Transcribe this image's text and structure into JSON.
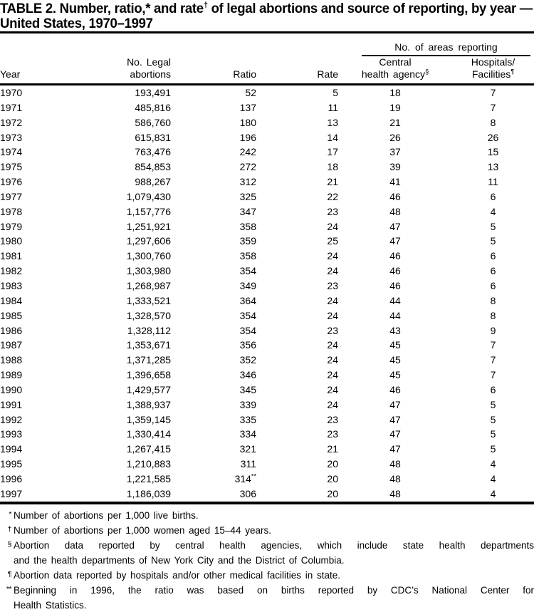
{
  "title": {
    "line1_pre": "TABLE 2. Number, ratio,* and rate",
    "line1_sup": "†",
    "line1_post": " of legal abortions and source of reporting, by year —",
    "line2": "United States, 1970–1997"
  },
  "columns": {
    "year": "Year",
    "abortions_line1": "No. Legal",
    "abortions_line2": "abortions",
    "ratio": "Ratio",
    "rate": "Rate",
    "spanner": "No. of areas reporting",
    "central_line1": "Central",
    "central_line2": "health agency",
    "central_sup": "§",
    "hospitals_line1": "Hospitals/",
    "hospitals_line2": "Facilities",
    "hospitals_sup": "¶"
  },
  "table": {
    "col_keys": [
      "year",
      "abortions",
      "ratio",
      "rate",
      "central-health-agency",
      "hospitals-facilities"
    ],
    "rows": [
      [
        "1970",
        "193,491",
        "52",
        "5",
        "18",
        "7"
      ],
      [
        "1971",
        "485,816",
        "137",
        "11",
        "19",
        "7"
      ],
      [
        "1972",
        "586,760",
        "180",
        "13",
        "21",
        "8"
      ],
      [
        "1973",
        "615,831",
        "196",
        "14",
        "26",
        "26"
      ],
      [
        "1974",
        "763,476",
        "242",
        "17",
        "37",
        "15"
      ],
      [
        "1975",
        "854,853",
        "272",
        "18",
        "39",
        "13"
      ],
      [
        "1976",
        "988,267",
        "312",
        "21",
        "41",
        "11"
      ],
      [
        "1977",
        "1,079,430",
        "325",
        "22",
        "46",
        "6"
      ],
      [
        "1978",
        "1,157,776",
        "347",
        "23",
        "48",
        "4"
      ],
      [
        "1979",
        "1,251,921",
        "358",
        "24",
        "47",
        "5"
      ],
      [
        "1980",
        "1,297,606",
        "359",
        "25",
        "47",
        "5"
      ],
      [
        "1981",
        "1,300,760",
        "358",
        "24",
        "46",
        "6"
      ],
      [
        "1982",
        "1,303,980",
        "354",
        "24",
        "46",
        "6"
      ],
      [
        "1983",
        "1,268,987",
        "349",
        "23",
        "46",
        "6"
      ],
      [
        "1984",
        "1,333,521",
        "364",
        "24",
        "44",
        "8"
      ],
      [
        "1985",
        "1,328,570",
        "354",
        "24",
        "44",
        "8"
      ],
      [
        "1986",
        "1,328,112",
        "354",
        "23",
        "43",
        "9"
      ],
      [
        "1987",
        "1,353,671",
        "356",
        "24",
        "45",
        "7"
      ],
      [
        "1988",
        "1,371,285",
        "352",
        "24",
        "45",
        "7"
      ],
      [
        "1989",
        "1,396,658",
        "346",
        "24",
        "45",
        "7"
      ],
      [
        "1990",
        "1,429,577",
        "345",
        "24",
        "46",
        "6"
      ],
      [
        "1991",
        "1,388,937",
        "339",
        "24",
        "47",
        "5"
      ],
      [
        "1992",
        "1,359,145",
        "335",
        "23",
        "47",
        "5"
      ],
      [
        "1993",
        "1,330,414",
        "334",
        "23",
        "47",
        "5"
      ],
      [
        "1994",
        "1,267,415",
        "321",
        "21",
        "47",
        "5"
      ],
      [
        "1995",
        "1,210,883",
        "311",
        "20",
        "48",
        "4"
      ],
      [
        "1996",
        "1,221,585",
        "314**",
        "20",
        "48",
        "4"
      ],
      [
        "1997",
        "1,186,039",
        "306",
        "20",
        "48",
        "4"
      ]
    ]
  },
  "footnotes": [
    {
      "sym": "*",
      "lines": [
        "Number of abortions per 1,000 live births."
      ]
    },
    {
      "sym": "†",
      "lines": [
        "Number of abortions per 1,000 women aged 15–44 years."
      ]
    },
    {
      "sym": "§",
      "lines": [
        "Abortion data reported by central health agencies, which include state health departments",
        "and the health departments of New York City and the District of Columbia."
      ]
    },
    {
      "sym": "¶",
      "lines": [
        "Abortion data reported by hospitals and/or other medical facilities in state."
      ]
    },
    {
      "sym": "**",
      "lines": [
        "Beginning in 1996, the ratio was based on births reported by CDC’s National Center for",
        "Health Statistics."
      ]
    }
  ]
}
